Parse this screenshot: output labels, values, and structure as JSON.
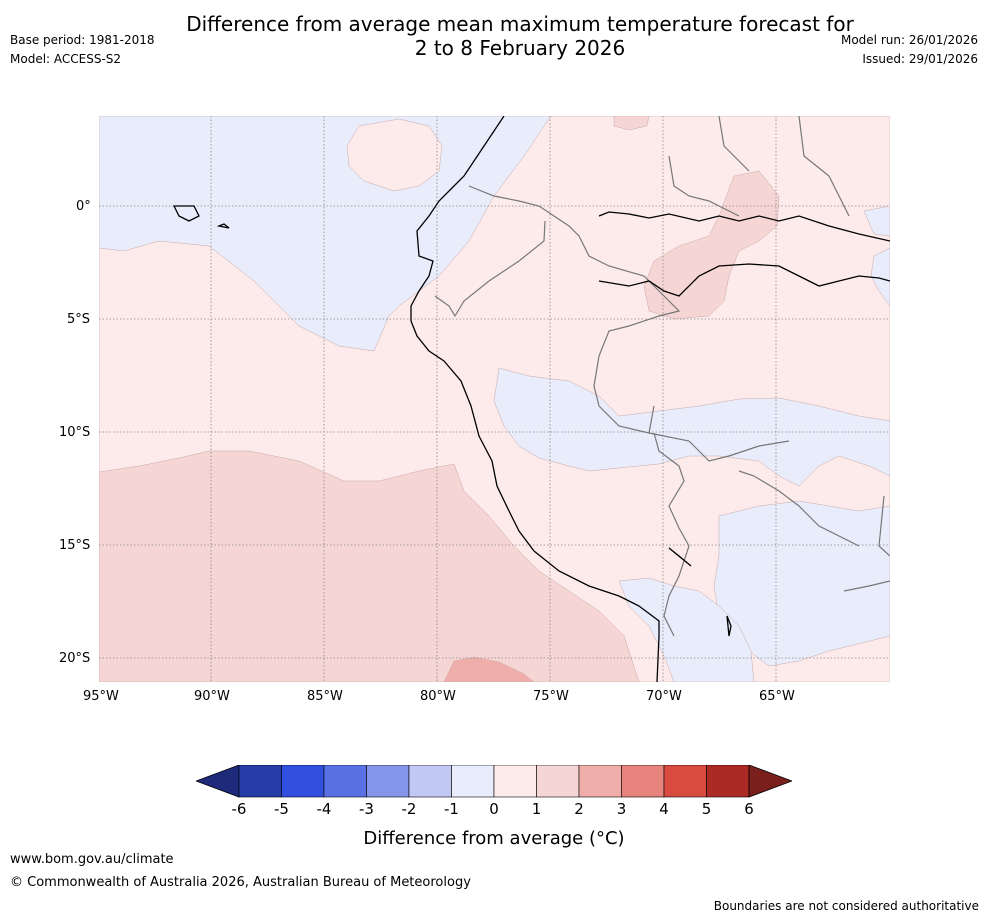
{
  "header": {
    "title_line1": "Difference from average mean maximum temperature forecast for",
    "title_line2": "2 to 8 February 2026",
    "base_period": "Base period: 1981-2018",
    "model": "Model: ACCESS-S2",
    "model_run": "Model run: 26/01/2026",
    "issued": "Issued: 29/01/2026"
  },
  "map": {
    "lat_labels": [
      "0°",
      "5°S",
      "10°S",
      "15°S",
      "20°S"
    ],
    "lon_labels": [
      "95°W",
      "90°W",
      "85°W",
      "80°W",
      "75°W",
      "70°W",
      "65°W"
    ],
    "colors": {
      "ocean_neg": "#e8ecfb",
      "pos_0_1": "#fcebea",
      "pos_1_2": "#f6d6d4",
      "pos_2_3": "#efaeaa",
      "grid": "#888888",
      "coast": "#000000",
      "border": "#777777"
    }
  },
  "legend": {
    "title": "Difference from average (°C)",
    "ticks": [
      "-6",
      "-5",
      "-4",
      "-3",
      "-2",
      "-1",
      "0",
      "1",
      "2",
      "3",
      "4",
      "5",
      "6"
    ],
    "colors": [
      "#1f2b7a",
      "#263da8",
      "#3150df",
      "#5a71e6",
      "#8596ea",
      "#c1c8f3",
      "#e8ecfb",
      "#fcebea",
      "#f6d6d4",
      "#efaeaa",
      "#e6837c",
      "#d94a40",
      "#ac2a24",
      "#7a1f1b"
    ]
  },
  "footer": {
    "website": "www.bom.gov.au/climate",
    "copyright": "© Commonwealth of Australia 2026, Australian Bureau of Meteorology",
    "disclaimer": "Boundaries are not considered authoritative"
  }
}
